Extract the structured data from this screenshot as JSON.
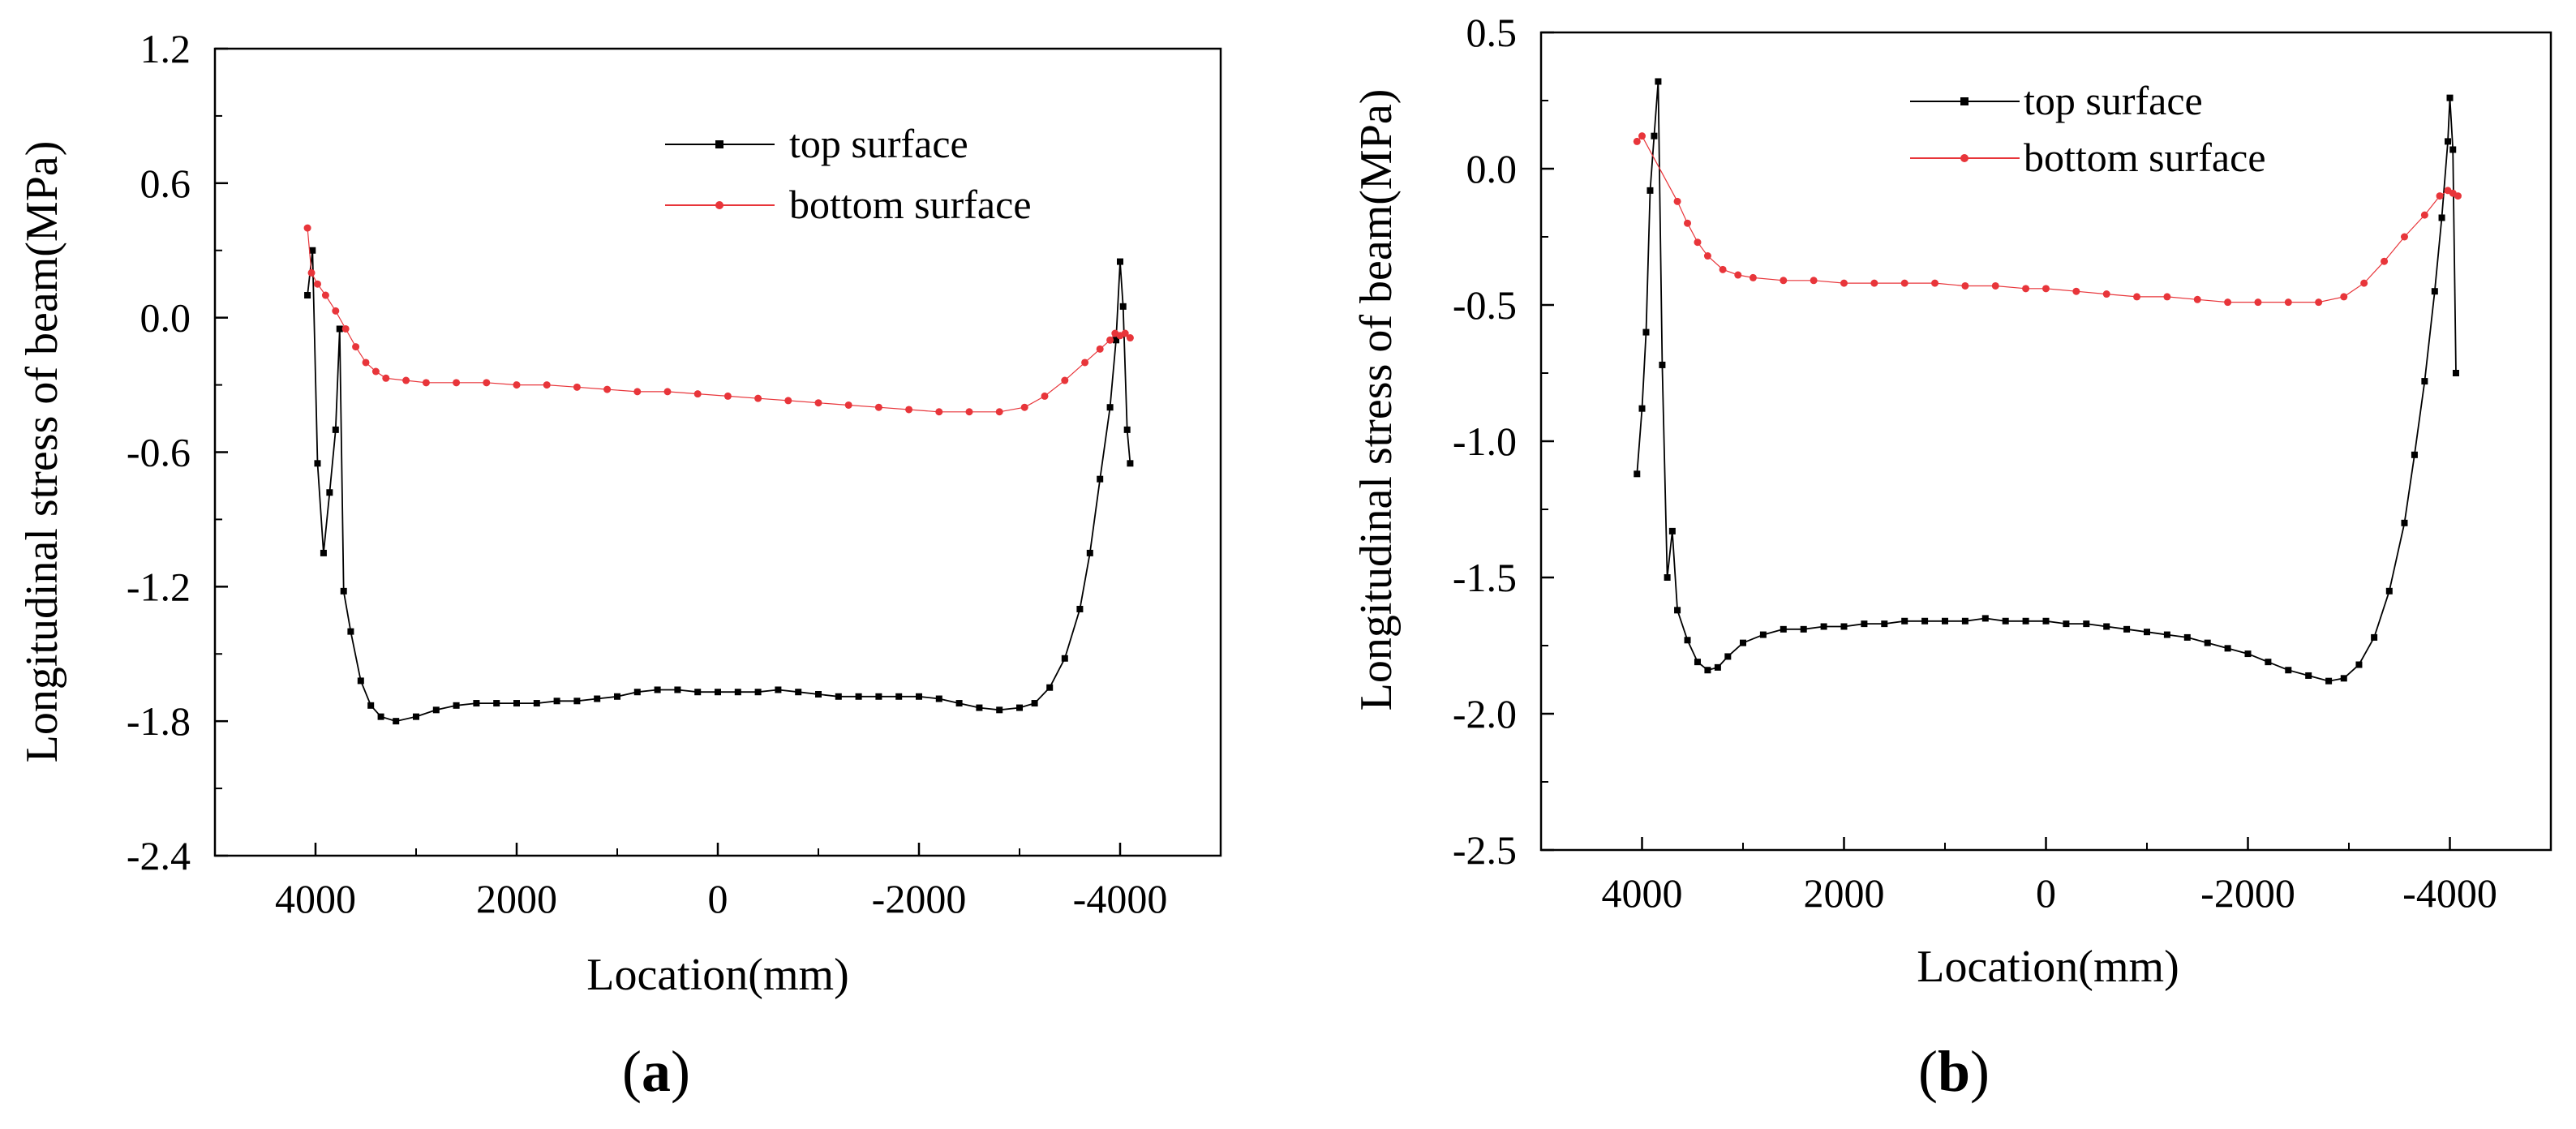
{
  "series_style": {
    "top_color": "#000000",
    "bottom_color": "#e8353a"
  },
  "chart_data": [
    {
      "type": "line",
      "caption": "a",
      "xlabel": "Location(mm)",
      "ylabel": "Longitudinal stress of beam(MPa)",
      "xlim": [
        5000,
        -5000
      ],
      "ylim": [
        -2.4,
        1.2
      ],
      "xticks": [
        4000,
        2000,
        0,
        -2000,
        -4000
      ],
      "xtick_labels": [
        "4000",
        "2000",
        "0",
        "-2000",
        "-4000"
      ],
      "yticks": [
        1.2,
        0.6,
        0.0,
        -0.6,
        -1.2,
        -1.8,
        -2.4
      ],
      "ytick_labels": [
        "1.2",
        "0.6",
        "0.0",
        "-0.6",
        "-1.2",
        "-1.8",
        "-2.4"
      ],
      "legend_position": "top-right",
      "series": [
        {
          "name": "top surface",
          "marker": "square",
          "points": [
            [
              4080,
              0.1
            ],
            [
              4030,
              0.3
            ],
            [
              3980,
              -0.65
            ],
            [
              3920,
              -1.05
            ],
            [
              3860,
              -0.78
            ],
            [
              3800,
              -0.5
            ],
            [
              3760,
              -0.05
            ],
            [
              3720,
              -1.22
            ],
            [
              3650,
              -1.4
            ],
            [
              3550,
              -1.62
            ],
            [
              3450,
              -1.73
            ],
            [
              3350,
              -1.78
            ],
            [
              3200,
              -1.8
            ],
            [
              3000,
              -1.78
            ],
            [
              2800,
              -1.75
            ],
            [
              2600,
              -1.73
            ],
            [
              2400,
              -1.72
            ],
            [
              2200,
              -1.72
            ],
            [
              2000,
              -1.72
            ],
            [
              1800,
              -1.72
            ],
            [
              1600,
              -1.71
            ],
            [
              1400,
              -1.71
            ],
            [
              1200,
              -1.7
            ],
            [
              1000,
              -1.69
            ],
            [
              800,
              -1.67
            ],
            [
              600,
              -1.66
            ],
            [
              400,
              -1.66
            ],
            [
              200,
              -1.67
            ],
            [
              0,
              -1.67
            ],
            [
              -200,
              -1.67
            ],
            [
              -400,
              -1.67
            ],
            [
              -600,
              -1.66
            ],
            [
              -800,
              -1.67
            ],
            [
              -1000,
              -1.68
            ],
            [
              -1200,
              -1.69
            ],
            [
              -1400,
              -1.69
            ],
            [
              -1600,
              -1.69
            ],
            [
              -1800,
              -1.69
            ],
            [
              -2000,
              -1.69
            ],
            [
              -2200,
              -1.7
            ],
            [
              -2400,
              -1.72
            ],
            [
              -2600,
              -1.74
            ],
            [
              -2800,
              -1.75
            ],
            [
              -3000,
              -1.74
            ],
            [
              -3150,
              -1.72
            ],
            [
              -3300,
              -1.65
            ],
            [
              -3450,
              -1.52
            ],
            [
              -3600,
              -1.3
            ],
            [
              -3700,
              -1.05
            ],
            [
              -3800,
              -0.72
            ],
            [
              -3900,
              -0.4
            ],
            [
              -3960,
              -0.1
            ],
            [
              -4000,
              0.25
            ],
            [
              -4030,
              0.05
            ],
            [
              -4070,
              -0.5
            ],
            [
              -4100,
              -0.65
            ]
          ]
        },
        {
          "name": "bottom surface",
          "marker": "circle",
          "points": [
            [
              4080,
              0.4
            ],
            [
              4040,
              0.2
            ],
            [
              3980,
              0.15
            ],
            [
              3900,
              0.1
            ],
            [
              3800,
              0.03
            ],
            [
              3700,
              -0.05
            ],
            [
              3600,
              -0.13
            ],
            [
              3500,
              -0.2
            ],
            [
              3400,
              -0.24
            ],
            [
              3300,
              -0.27
            ],
            [
              3100,
              -0.28
            ],
            [
              2900,
              -0.29
            ],
            [
              2600,
              -0.29
            ],
            [
              2300,
              -0.29
            ],
            [
              2000,
              -0.3
            ],
            [
              1700,
              -0.3
            ],
            [
              1400,
              -0.31
            ],
            [
              1100,
              -0.32
            ],
            [
              800,
              -0.33
            ],
            [
              500,
              -0.33
            ],
            [
              200,
              -0.34
            ],
            [
              -100,
              -0.35
            ],
            [
              -400,
              -0.36
            ],
            [
              -700,
              -0.37
            ],
            [
              -1000,
              -0.38
            ],
            [
              -1300,
              -0.39
            ],
            [
              -1600,
              -0.4
            ],
            [
              -1900,
              -0.41
            ],
            [
              -2200,
              -0.42
            ],
            [
              -2500,
              -0.42
            ],
            [
              -2800,
              -0.42
            ],
            [
              -3050,
              -0.4
            ],
            [
              -3250,
              -0.35
            ],
            [
              -3450,
              -0.28
            ],
            [
              -3650,
              -0.2
            ],
            [
              -3800,
              -0.14
            ],
            [
              -3900,
              -0.1
            ],
            [
              -3950,
              -0.07
            ],
            [
              -4000,
              -0.08
            ],
            [
              -4050,
              -0.07
            ],
            [
              -4100,
              -0.09
            ]
          ]
        }
      ]
    },
    {
      "type": "line",
      "caption": "b",
      "xlabel": "Location(mm)",
      "ylabel": "Longitudinal stress of beam(MPa)",
      "xlim": [
        5000,
        -5000
      ],
      "ylim": [
        -2.5,
        0.5
      ],
      "xticks": [
        4000,
        2000,
        0,
        -2000,
        -4000
      ],
      "xtick_labels": [
        "4000",
        "2000",
        "0",
        "-2000",
        "-4000"
      ],
      "yticks": [
        0.5,
        0.0,
        -0.5,
        -1.0,
        -1.5,
        -2.0,
        -2.5
      ],
      "ytick_labels": [
        "0.5",
        "0.0",
        "-0.5",
        "-1.0",
        "-1.5",
        "-2.0",
        "-2.5"
      ],
      "legend_position": "top-center",
      "series": [
        {
          "name": "top surface",
          "marker": "square",
          "points": [
            [
              4050,
              -1.12
            ],
            [
              4000,
              -0.88
            ],
            [
              3960,
              -0.6
            ],
            [
              3920,
              -0.08
            ],
            [
              3880,
              0.12
            ],
            [
              3840,
              0.32
            ],
            [
              3800,
              -0.72
            ],
            [
              3750,
              -1.5
            ],
            [
              3700,
              -1.33
            ],
            [
              3650,
              -1.62
            ],
            [
              3550,
              -1.73
            ],
            [
              3450,
              -1.81
            ],
            [
              3350,
              -1.84
            ],
            [
              3250,
              -1.83
            ],
            [
              3150,
              -1.79
            ],
            [
              3000,
              -1.74
            ],
            [
              2800,
              -1.71
            ],
            [
              2600,
              -1.69
            ],
            [
              2400,
              -1.69
            ],
            [
              2200,
              -1.68
            ],
            [
              2000,
              -1.68
            ],
            [
              1800,
              -1.67
            ],
            [
              1600,
              -1.67
            ],
            [
              1400,
              -1.66
            ],
            [
              1200,
              -1.66
            ],
            [
              1000,
              -1.66
            ],
            [
              800,
              -1.66
            ],
            [
              600,
              -1.65
            ],
            [
              400,
              -1.66
            ],
            [
              200,
              -1.66
            ],
            [
              0,
              -1.66
            ],
            [
              -200,
              -1.67
            ],
            [
              -400,
              -1.67
            ],
            [
              -600,
              -1.68
            ],
            [
              -800,
              -1.69
            ],
            [
              -1000,
              -1.7
            ],
            [
              -1200,
              -1.71
            ],
            [
              -1400,
              -1.72
            ],
            [
              -1600,
              -1.74
            ],
            [
              -1800,
              -1.76
            ],
            [
              -2000,
              -1.78
            ],
            [
              -2200,
              -1.81
            ],
            [
              -2400,
              -1.84
            ],
            [
              -2600,
              -1.86
            ],
            [
              -2800,
              -1.88
            ],
            [
              -2950,
              -1.87
            ],
            [
              -3100,
              -1.82
            ],
            [
              -3250,
              -1.72
            ],
            [
              -3400,
              -1.55
            ],
            [
              -3550,
              -1.3
            ],
            [
              -3650,
              -1.05
            ],
            [
              -3750,
              -0.78
            ],
            [
              -3850,
              -0.45
            ],
            [
              -3920,
              -0.18
            ],
            [
              -3980,
              0.1
            ],
            [
              -4000,
              0.26
            ],
            [
              -4030,
              0.07
            ],
            [
              -4060,
              -0.75
            ]
          ]
        },
        {
          "name": "bottom surface",
          "marker": "circle",
          "points": [
            [
              4050,
              0.1
            ],
            [
              4000,
              0.12
            ],
            [
              3650,
              -0.12
            ],
            [
              3550,
              -0.2
            ],
            [
              3450,
              -0.27
            ],
            [
              3350,
              -0.32
            ],
            [
              3200,
              -0.37
            ],
            [
              3050,
              -0.39
            ],
            [
              2900,
              -0.4
            ],
            [
              2600,
              -0.41
            ],
            [
              2300,
              -0.41
            ],
            [
              2000,
              -0.42
            ],
            [
              1700,
              -0.42
            ],
            [
              1400,
              -0.42
            ],
            [
              1100,
              -0.42
            ],
            [
              800,
              -0.43
            ],
            [
              500,
              -0.43
            ],
            [
              200,
              -0.44
            ],
            [
              0,
              -0.44
            ],
            [
              -300,
              -0.45
            ],
            [
              -600,
              -0.46
            ],
            [
              -900,
              -0.47
            ],
            [
              -1200,
              -0.47
            ],
            [
              -1500,
              -0.48
            ],
            [
              -1800,
              -0.49
            ],
            [
              -2100,
              -0.49
            ],
            [
              -2400,
              -0.49
            ],
            [
              -2700,
              -0.49
            ],
            [
              -2950,
              -0.47
            ],
            [
              -3150,
              -0.42
            ],
            [
              -3350,
              -0.34
            ],
            [
              -3550,
              -0.25
            ],
            [
              -3750,
              -0.17
            ],
            [
              -3900,
              -0.1
            ],
            [
              -3980,
              -0.08
            ],
            [
              -4030,
              -0.09
            ],
            [
              -4080,
              -0.1
            ]
          ]
        }
      ]
    }
  ]
}
